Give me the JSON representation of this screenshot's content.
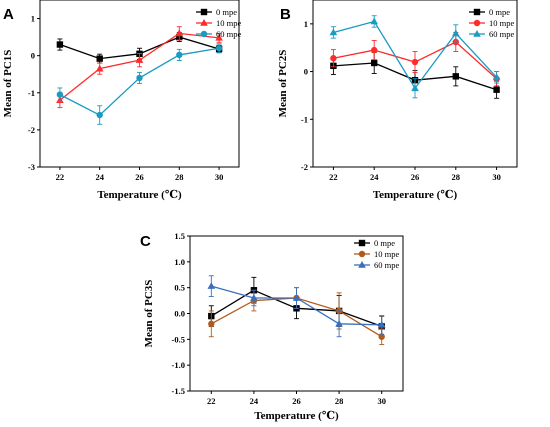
{
  "chart_data": [
    {
      "type": "line",
      "panel": "A",
      "title": "",
      "xlabel": "Temperature (℃)",
      "ylabel": "Mean of PC1S",
      "categories": [
        "22",
        "24",
        "26",
        "28",
        "30"
      ],
      "x": [
        22,
        24,
        26,
        28,
        30
      ],
      "xlim": [
        21,
        31
      ],
      "ylim": [
        -3,
        1.5
      ],
      "yticks": [
        -3,
        -2,
        -1,
        0,
        1
      ],
      "ytick_labels": [
        "-3",
        "-2",
        "-1",
        "0",
        "1"
      ],
      "legend_position": "top-right",
      "grid": false,
      "series": [
        {
          "name": "0 mpe",
          "color": "#000000",
          "marker": "square",
          "values": [
            0.3,
            -0.08,
            0.05,
            0.5,
            0.18
          ],
          "errors": [
            0.15,
            0.12,
            0.15,
            0.12,
            0.1
          ]
        },
        {
          "name": "10 mpe",
          "color": "#ff2a2a",
          "marker": "triangle",
          "values": [
            -1.2,
            -0.35,
            -0.12,
            0.6,
            0.48
          ],
          "errors": [
            0.2,
            0.15,
            0.18,
            0.18,
            0.12
          ]
        },
        {
          "name": "60 mpe",
          "color": "#1a9bc1",
          "marker": "circle",
          "values": [
            -1.05,
            -1.6,
            -0.6,
            0.02,
            0.2
          ],
          "errors": [
            0.18,
            0.25,
            0.15,
            0.15,
            0.12
          ]
        }
      ]
    },
    {
      "type": "line",
      "panel": "B",
      "title": "",
      "xlabel": "Temperature (℃)",
      "ylabel": "Mean of PC2S",
      "categories": [
        "22",
        "24",
        "26",
        "28",
        "30"
      ],
      "x": [
        22,
        24,
        26,
        28,
        30
      ],
      "xlim": [
        21,
        31
      ],
      "ylim": [
        -2,
        1.5
      ],
      "yticks": [
        -2,
        -1,
        0,
        1
      ],
      "ytick_labels": [
        "-2",
        "-1",
        "0",
        "1"
      ],
      "legend_position": "top-right",
      "grid": false,
      "series": [
        {
          "name": "0 mpe",
          "color": "#000000",
          "marker": "square",
          "values": [
            0.12,
            0.18,
            -0.18,
            -0.1,
            -0.38
          ],
          "errors": [
            0.18,
            0.22,
            0.2,
            0.2,
            0.18
          ]
        },
        {
          "name": "10 mpe",
          "color": "#ff2a2a",
          "marker": "circle",
          "values": [
            0.28,
            0.45,
            0.2,
            0.62,
            -0.15
          ],
          "errors": [
            0.18,
            0.2,
            0.22,
            0.2,
            0.15
          ]
        },
        {
          "name": "60 mpe",
          "color": "#1a9bc1",
          "marker": "triangle",
          "values": [
            0.82,
            1.05,
            -0.35,
            0.8,
            -0.12
          ],
          "errors": [
            0.12,
            0.12,
            0.2,
            0.18,
            0.12
          ]
        }
      ]
    },
    {
      "type": "line",
      "panel": "C",
      "title": "",
      "xlabel": "Temperature (℃)",
      "ylabel": "Mean of PC3S",
      "categories": [
        "22",
        "24",
        "26",
        "28",
        "30"
      ],
      "x": [
        22,
        24,
        26,
        28,
        30
      ],
      "xlim": [
        21,
        31
      ],
      "ylim": [
        -1.5,
        1.5
      ],
      "yticks": [
        -1.5,
        -1.0,
        -0.5,
        0.0,
        0.5,
        1.0,
        1.5
      ],
      "ytick_labels": [
        "-1.5",
        "-1.0",
        "-0.5",
        "0.0",
        "0.5",
        "1.0",
        "1.5"
      ],
      "legend_position": "top-right",
      "grid": false,
      "series": [
        {
          "name": "0 mpe",
          "color": "#000000",
          "marker": "square",
          "values": [
            -0.05,
            0.45,
            0.1,
            0.05,
            -0.25
          ],
          "errors": [
            0.2,
            0.25,
            0.2,
            0.3,
            0.2
          ]
        },
        {
          "name": "10 mpe",
          "color": "#b15a1a",
          "marker": "circle",
          "values": [
            -0.2,
            0.25,
            0.3,
            0.05,
            -0.45
          ],
          "errors": [
            0.25,
            0.2,
            0.2,
            0.35,
            0.15
          ]
        },
        {
          "name": "60 mpe",
          "color": "#3a6fbf",
          "marker": "triangle",
          "values": [
            0.53,
            0.3,
            0.3,
            -0.2,
            -0.22
          ],
          "errors": [
            0.2,
            0.15,
            0.2,
            0.25,
            0.18
          ]
        }
      ]
    }
  ]
}
